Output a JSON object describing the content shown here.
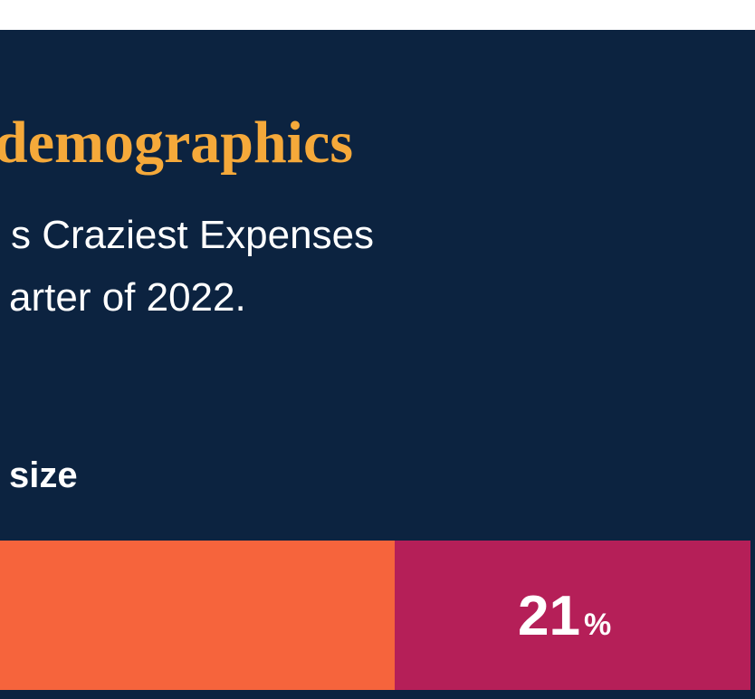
{
  "header": {
    "title": "demographics",
    "subtitle_lines": [
      "s Craziest Expenses",
      "arter of 2022."
    ]
  },
  "section": {
    "label": "size"
  },
  "bar": {
    "segments": [
      {},
      {
        "value": 21,
        "unit": "%"
      }
    ]
  }
}
